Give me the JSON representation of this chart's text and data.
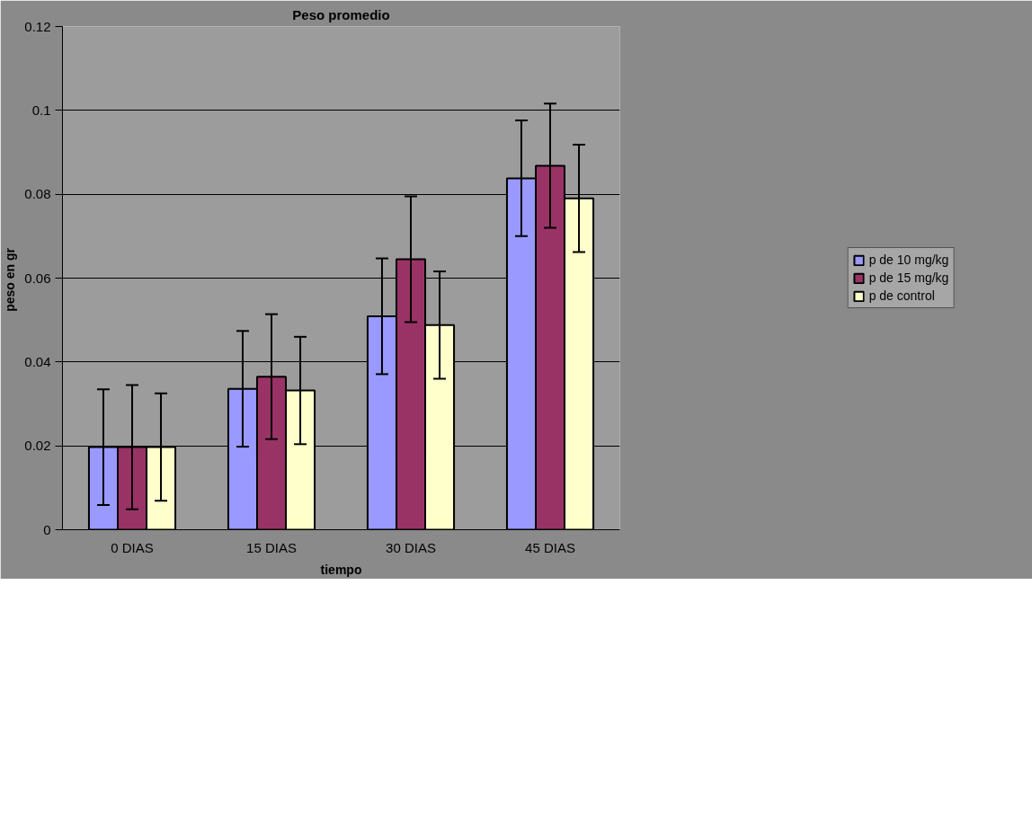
{
  "chart_data": {
    "type": "bar",
    "title": "Peso promedio",
    "xlabel": "tiempo",
    "ylabel": "peso en  gr",
    "categories": [
      "0 DIAS",
      "15 DIAS",
      "30 DIAS",
      "45 DIAS"
    ],
    "series": [
      {
        "name": "p de 10 mg/kg",
        "color": "#9999ff",
        "values": [
          0.0197,
          0.0336,
          0.0509,
          0.0838
        ],
        "errors": [
          0.0138,
          0.0138,
          0.0138,
          0.0138
        ]
      },
      {
        "name": "p de 15 mg/kg",
        "color": "#993366",
        "values": [
          0.0197,
          0.0365,
          0.0645,
          0.0868
        ],
        "errors": [
          0.0148,
          0.0149,
          0.015,
          0.0148
        ]
      },
      {
        "name": "p de control",
        "color": "#ffffcc",
        "values": [
          0.0197,
          0.0332,
          0.0488,
          0.079
        ],
        "errors": [
          0.0128,
          0.0128,
          0.0128,
          0.0128
        ]
      }
    ],
    "ylim": [
      0,
      0.12
    ],
    "yticks": [
      0,
      0.02,
      0.04,
      0.06,
      0.08,
      0.1,
      0.12
    ],
    "grid": "y",
    "legend": "right"
  }
}
